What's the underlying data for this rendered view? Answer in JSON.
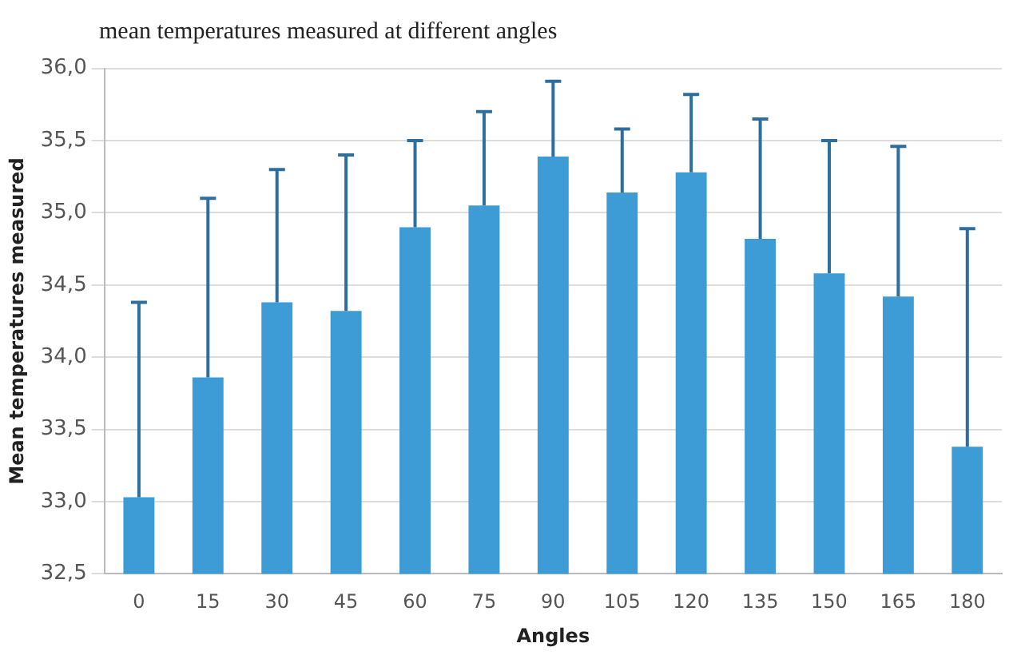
{
  "chart_data": {
    "type": "bar",
    "title": "mean temperatures measured at different angles",
    "xlabel": "Angles",
    "ylabel": "Mean temperatures measured",
    "categories": [
      "0",
      "15",
      "30",
      "45",
      "60",
      "75",
      "90",
      "105",
      "120",
      "135",
      "150",
      "165",
      "180"
    ],
    "values": [
      33.03,
      33.86,
      34.38,
      34.32,
      34.9,
      35.05,
      35.39,
      35.14,
      35.28,
      34.82,
      34.58,
      34.42,
      33.38
    ],
    "errors": [
      [
        33.03,
        34.38
      ],
      [
        33.86,
        35.1
      ],
      [
        34.38,
        35.3
      ],
      [
        34.32,
        35.4
      ],
      [
        34.9,
        35.5
      ],
      [
        35.05,
        35.7
      ],
      [
        35.39,
        35.91
      ],
      [
        35.14,
        35.58
      ],
      [
        35.28,
        35.82
      ],
      [
        34.82,
        35.65
      ],
      [
        34.58,
        35.5
      ],
      [
        34.42,
        35.46
      ],
      [
        33.38,
        34.89
      ]
    ],
    "color": "#3d9bd6",
    "ylim": [
      32.5,
      36
    ],
    "yticks": [
      {
        "value": 32.5,
        "label": "32,5"
      },
      {
        "value": 33,
        "label": "33,0"
      },
      {
        "value": 33.5,
        "label": "33,5"
      },
      {
        "value": 34,
        "label": "34,0"
      },
      {
        "value": 34.5,
        "label": "34,5"
      },
      {
        "value": 35,
        "label": "35,0"
      },
      {
        "value": 35.5,
        "label": "35,5"
      },
      {
        "value": 36,
        "label": "36,0"
      }
    ],
    "grid": "y",
    "legend": false
  }
}
